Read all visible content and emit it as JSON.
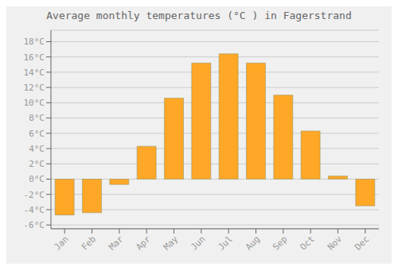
{
  "chart_data": {
    "type": "bar",
    "title": "Average monthly temperatures (°C ) in Fagerstrand",
    "categories": [
      "Jan",
      "Feb",
      "Mar",
      "Apr",
      "May",
      "Jun",
      "Jul",
      "Aug",
      "Sep",
      "Oct",
      "Nov",
      "Dec"
    ],
    "values": [
      -4.7,
      -4.4,
      -0.7,
      4.3,
      10.6,
      15.2,
      16.4,
      15.2,
      11.0,
      6.3,
      0.4,
      -3.5
    ],
    "color": "#FFA726",
    "ylim": [
      -6.5,
      19.5
    ],
    "yticks": [
      {
        "value": -6,
        "label": "-6°C"
      },
      {
        "value": -4,
        "label": "-4°C"
      },
      {
        "value": -2,
        "label": "-2°C"
      },
      {
        "value": 0,
        "label": "0°C"
      },
      {
        "value": 2,
        "label": "2°C"
      },
      {
        "value": 4,
        "label": "4°C"
      },
      {
        "value": 6,
        "label": "6°C"
      },
      {
        "value": 8,
        "label": "8°C"
      },
      {
        "value": 10,
        "label": "10°C"
      },
      {
        "value": 12,
        "label": "12°C"
      },
      {
        "value": 14,
        "label": "14°C"
      },
      {
        "value": 16,
        "label": "16°C"
      },
      {
        "value": 18,
        "label": "18°C"
      }
    ],
    "grid": true
  }
}
